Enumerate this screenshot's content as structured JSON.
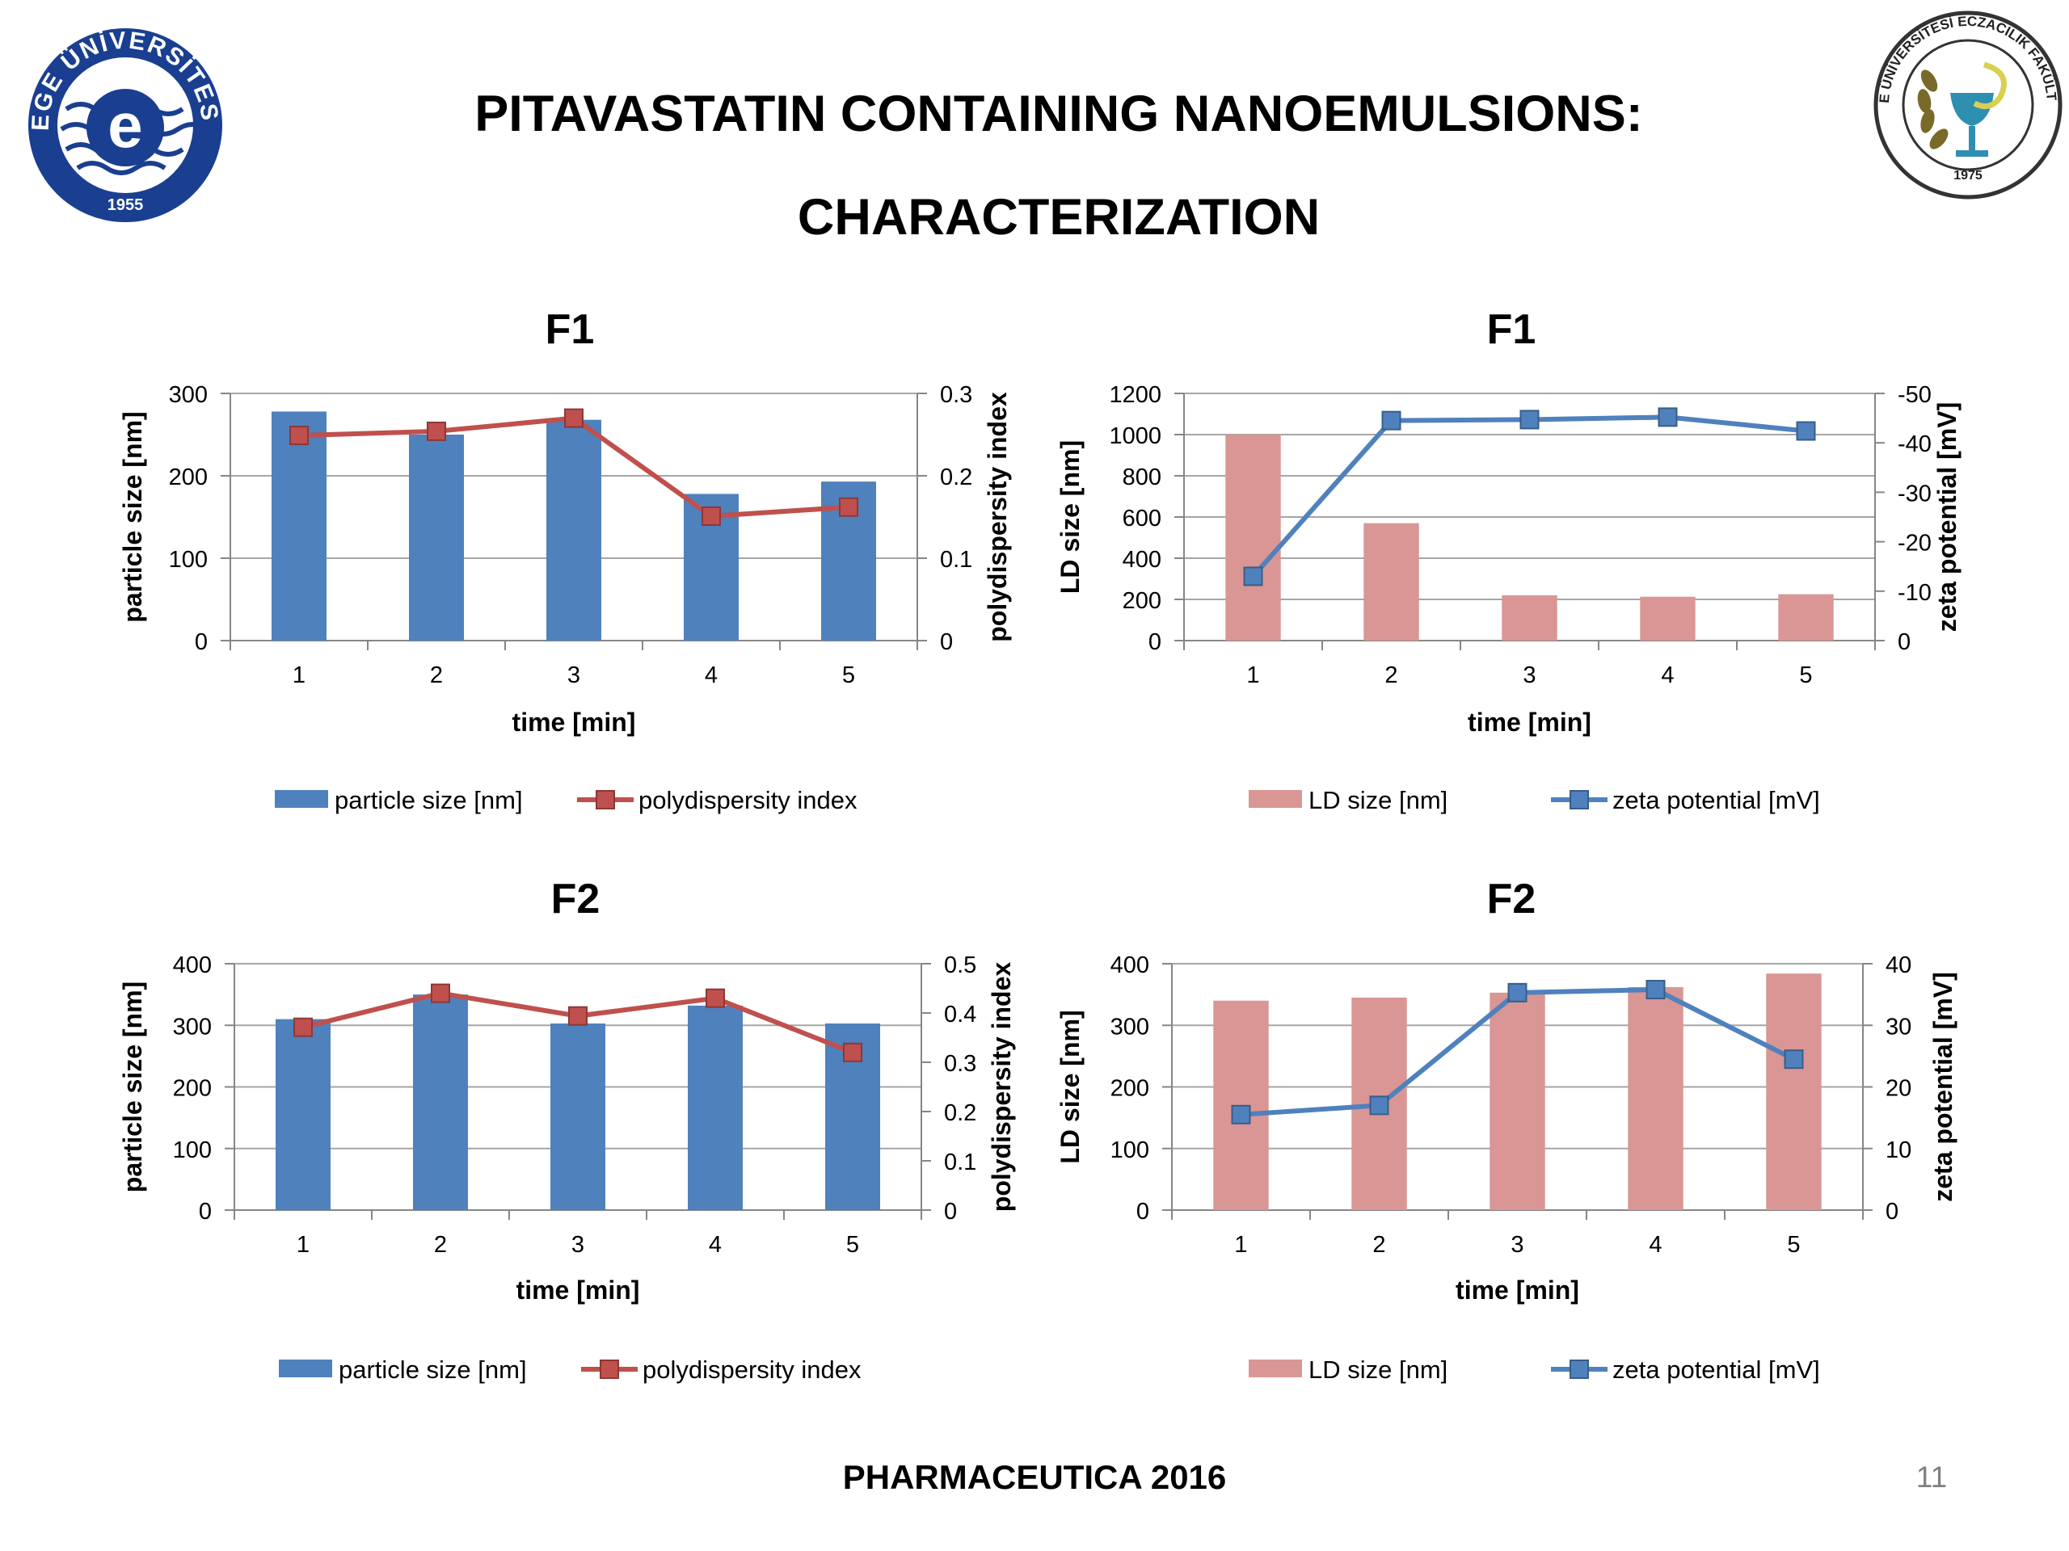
{
  "slide": {
    "title_line1": "PITAVASTATIN CONTAINING NANOEMULSIONS:",
    "title_line2": "CHARACTERIZATION",
    "footer": "PHARMACEUTICA 2016",
    "page_number": "11"
  },
  "logos": {
    "left": {
      "icon": "ege-university-seal-icon",
      "text_top": "EGE ÜNİVERSİTESİ",
      "year": "1955",
      "letter": "e",
      "color": "#1a3f91"
    },
    "right": {
      "icon": "pharmacy-faculty-seal-icon",
      "text_top": "EGE ÜNİVERSİTESİ ECZACILIK FAKÜLTESİ",
      "year": "1975"
    }
  },
  "chart_data": [
    {
      "type": "bar+line",
      "title": "F1",
      "xlabel": "time [min]",
      "ylabel_left": "particle size [nm]",
      "ylabel_right": "polydispersity index",
      "categories": [
        "1",
        "2",
        "3",
        "4",
        "5"
      ],
      "ylim_left": [
        0,
        300
      ],
      "yticks_left": [
        0,
        100,
        200,
        300
      ],
      "ylim_right": [
        0,
        0.3
      ],
      "yticks_right": [
        0,
        0.1,
        0.2,
        0.3
      ],
      "grid": true,
      "legend_position": "bottom",
      "series": [
        {
          "name": "particle size [nm]",
          "kind": "bar",
          "axis": "left",
          "color": "#4f81bd",
          "values": [
            278,
            250,
            268,
            178,
            193
          ]
        },
        {
          "name": "polydispersity index",
          "kind": "line",
          "axis": "right",
          "color": "#c0504d",
          "marker_color": "#c0504d",
          "values": [
            0.249,
            0.254,
            0.27,
            0.151,
            0.162
          ]
        }
      ]
    },
    {
      "type": "bar+line",
      "title": "F1",
      "xlabel": "time [min]",
      "ylabel_left": "LD size [nm]",
      "ylabel_right": "zeta potential [mV]",
      "categories": [
        "1",
        "2",
        "3",
        "4",
        "5"
      ],
      "ylim_left": [
        0,
        1200
      ],
      "yticks_left": [
        0,
        200,
        400,
        600,
        800,
        1000,
        1200
      ],
      "ylim_right": [
        0,
        -50
      ],
      "yticks_right": [
        0,
        -10,
        -20,
        -30,
        -40,
        -50
      ],
      "grid": true,
      "legend_position": "bottom",
      "series": [
        {
          "name": "LD size [nm]",
          "kind": "bar",
          "axis": "left",
          "color": "#d99694",
          "values": [
            1000,
            570,
            220,
            213,
            225
          ]
        },
        {
          "name": "zeta potential [mV]",
          "kind": "line",
          "axis": "right",
          "color": "#4f81bd",
          "marker_color": "#4f81bd",
          "values": [
            -13,
            -44.5,
            -44.7,
            -45.2,
            -42.4
          ]
        }
      ]
    },
    {
      "type": "bar+line",
      "title": "F2",
      "xlabel": "time [min]",
      "ylabel_left": "particle size [nm]",
      "ylabel_right": "polydispersity index",
      "categories": [
        "1",
        "2",
        "3",
        "4",
        "5"
      ],
      "ylim_left": [
        0,
        400
      ],
      "yticks_left": [
        0,
        100,
        200,
        300,
        400
      ],
      "ylim_right": [
        0,
        0.5
      ],
      "yticks_right": [
        0,
        0.1,
        0.2,
        0.3,
        0.4,
        0.5
      ],
      "grid": true,
      "legend_position": "bottom",
      "series": [
        {
          "name": "particle size [nm]",
          "kind": "bar",
          "axis": "left",
          "color": "#4f81bd",
          "values": [
            310,
            350,
            303,
            332,
            303
          ]
        },
        {
          "name": "polydispersity index",
          "kind": "line",
          "axis": "right",
          "color": "#c0504d",
          "marker_color": "#c0504d",
          "values": [
            0.371,
            0.44,
            0.394,
            0.43,
            0.32
          ]
        }
      ]
    },
    {
      "type": "bar+line",
      "title": "F2",
      "xlabel": "time [min]",
      "ylabel_left": "LD size [nm]",
      "ylabel_right": "zeta potential [mV]",
      "categories": [
        "1",
        "2",
        "3",
        "4",
        "5"
      ],
      "ylim_left": [
        0,
        400
      ],
      "yticks_left": [
        0,
        100,
        200,
        300,
        400
      ],
      "ylim_right": [
        0,
        40
      ],
      "yticks_right": [
        0,
        10,
        20,
        30,
        40
      ],
      "grid": true,
      "legend_position": "bottom",
      "series": [
        {
          "name": "LD size [nm]",
          "kind": "bar",
          "axis": "left",
          "color": "#d99694",
          "values": [
            340,
            345,
            353,
            362,
            384
          ]
        },
        {
          "name": "zeta potential [mV]",
          "kind": "line",
          "axis": "right",
          "color": "#4f81bd",
          "marker_color": "#4f81bd",
          "values": [
            15.5,
            17,
            35.3,
            35.8,
            24.5
          ]
        }
      ]
    }
  ]
}
